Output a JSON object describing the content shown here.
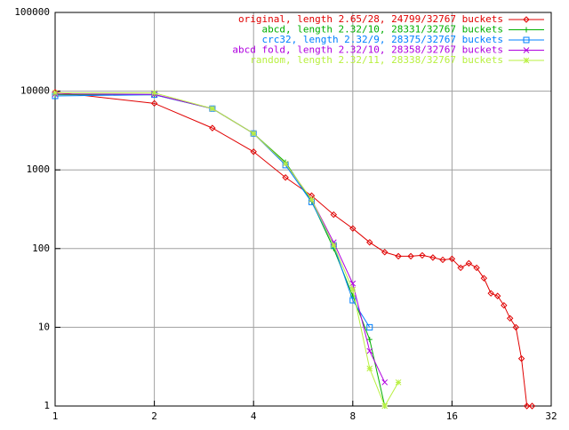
{
  "chart_data": {
    "type": "line",
    "xscale": "log",
    "yscale": "log",
    "grid": true,
    "legend": "top right",
    "xlim": [
      1,
      32
    ],
    "xticks": [
      1,
      2,
      4,
      8,
      16,
      32
    ],
    "ylim": [
      1,
      100000
    ],
    "yticks": [
      1,
      10,
      100,
      1000,
      10000,
      100000
    ],
    "series": [
      {
        "name": "original, length 2.65/28, 24799/32767 buckets",
        "color": "#e00000",
        "marker": "diamond",
        "x": [
          1,
          2,
          3,
          4,
          5,
          6,
          7,
          8,
          9,
          10,
          11,
          12,
          13,
          14,
          15,
          16,
          17,
          18,
          19,
          20,
          21,
          22,
          23,
          24,
          25,
          26,
          27,
          28
        ],
        "values": [
          9700,
          7000,
          3400,
          1700,
          800,
          470,
          270,
          180,
          120,
          90,
          80,
          80,
          82,
          77,
          72,
          74,
          57,
          65,
          57,
          42,
          27,
          25,
          19,
          13,
          10,
          4,
          1,
          1
        ]
      },
      {
        "name": "abcd, length 2.32/10, 28331/32767 buckets",
        "color": "#00b000",
        "marker": "plus",
        "x": [
          1,
          2,
          3,
          4,
          5,
          6,
          7,
          8,
          9,
          10
        ],
        "values": [
          9000,
          9000,
          6000,
          2900,
          1250,
          400,
          100,
          25,
          7,
          1
        ]
      },
      {
        "name": "crc32, length 2.32/9, 28375/32767 buckets",
        "color": "#0080ff",
        "marker": "square",
        "x": [
          1,
          2,
          3,
          4,
          5,
          6,
          7,
          8,
          9
        ],
        "values": [
          8700,
          9000,
          6000,
          2900,
          1150,
          390,
          110,
          22,
          10
        ]
      },
      {
        "name": "abcd fold, length 2.32/10, 28358/32767 buckets",
        "color": "#b000e0",
        "marker": "cross",
        "x": [
          1,
          2,
          3,
          4,
          5,
          6,
          7,
          8,
          9,
          10
        ],
        "values": [
          9200,
          9100,
          6000,
          2900,
          1200,
          420,
          120,
          36,
          5,
          2
        ]
      },
      {
        "name": "random, length 2.32/11, 28338/32767 buckets",
        "color": "#b8f040",
        "marker": "star",
        "x": [
          1,
          2,
          3,
          4,
          5,
          6,
          7,
          8,
          9,
          10,
          11
        ],
        "values": [
          9500,
          9500,
          6000,
          2900,
          1200,
          420,
          110,
          30,
          3,
          1,
          2
        ]
      }
    ]
  }
}
